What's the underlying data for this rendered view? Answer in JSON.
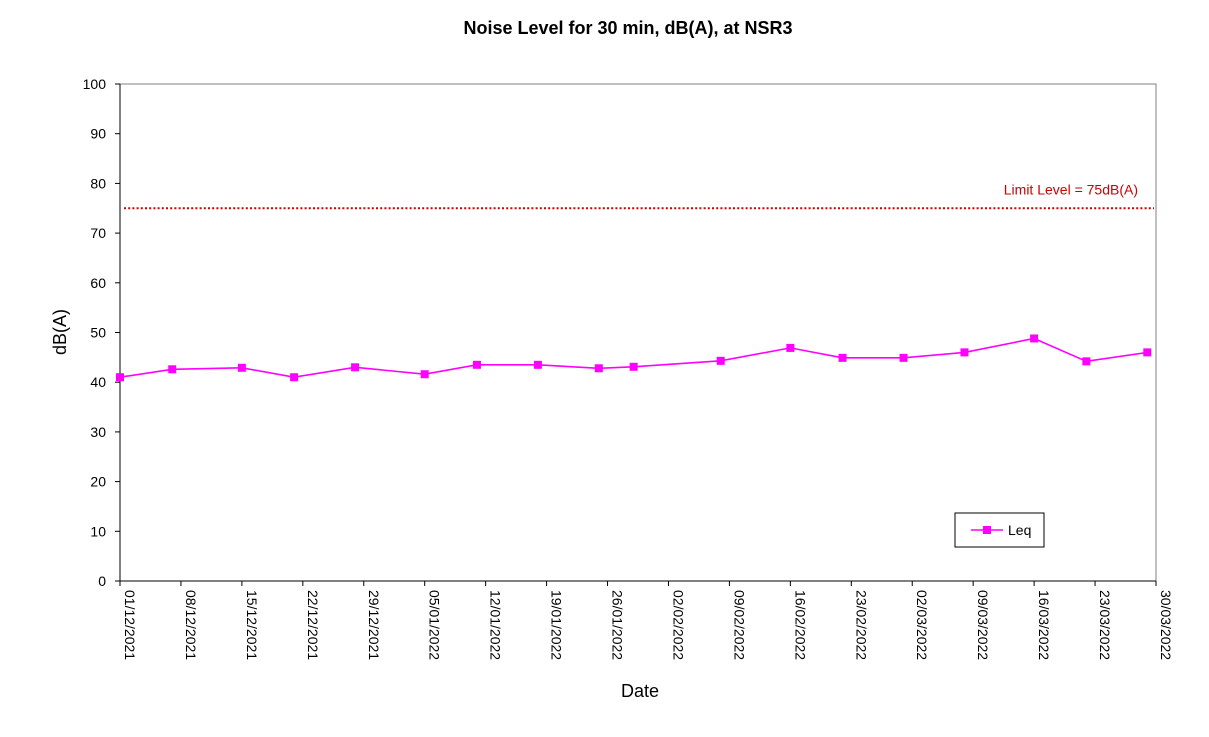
{
  "chart_data": {
    "type": "line",
    "title": "Noise Level for 30 min, dB(A), at NSR3",
    "xlabel": "Date",
    "ylabel": "dB(A)",
    "ylim": [
      0,
      100
    ],
    "yticks": [
      0,
      10,
      20,
      30,
      40,
      50,
      60,
      70,
      80,
      90,
      100
    ],
    "xlim": [
      "2021-12-01",
      "2022-03-30"
    ],
    "xtick_labels": [
      "01/12/2021",
      "08/12/2021",
      "15/12/2021",
      "22/12/2021",
      "29/12/2021",
      "05/01/2022",
      "12/01/2022",
      "19/01/2022",
      "26/01/2022",
      "02/02/2022",
      "09/02/2022",
      "16/02/2022",
      "23/02/2022",
      "02/03/2022",
      "09/03/2022",
      "16/03/2022",
      "23/03/2022",
      "30/03/2022"
    ],
    "grid": false,
    "legend": {
      "position": "bottom-right",
      "entries": [
        "Leq"
      ]
    },
    "series": [
      {
        "name": "Leq",
        "color": "#ff00ff",
        "marker": "square",
        "points": [
          {
            "x": "2021-12-01",
            "y": 41.0
          },
          {
            "x": "2021-12-07",
            "y": 42.6
          },
          {
            "x": "2021-12-15",
            "y": 42.9
          },
          {
            "x": "2021-12-21",
            "y": 41.0
          },
          {
            "x": "2021-12-28",
            "y": 43.0
          },
          {
            "x": "2022-01-05",
            "y": 41.6
          },
          {
            "x": "2022-01-11",
            "y": 43.5
          },
          {
            "x": "2022-01-18",
            "y": 43.5
          },
          {
            "x": "2022-01-25",
            "y": 42.8
          },
          {
            "x": "2022-01-29",
            "y": 43.1
          },
          {
            "x": "2022-02-08",
            "y": 44.3
          },
          {
            "x": "2022-02-16",
            "y": 46.9
          },
          {
            "x": "2022-02-22",
            "y": 44.9
          },
          {
            "x": "2022-03-01",
            "y": 44.9
          },
          {
            "x": "2022-03-08",
            "y": 46.0
          },
          {
            "x": "2022-03-16",
            "y": 48.8
          },
          {
            "x": "2022-03-22",
            "y": 44.2
          },
          {
            "x": "2022-03-29",
            "y": 46.0
          }
        ]
      }
    ],
    "reference_lines": [
      {
        "label": "Limit Level = 75dB(A)",
        "y": 75,
        "color": "#cc0000",
        "style": "dotted"
      }
    ]
  }
}
